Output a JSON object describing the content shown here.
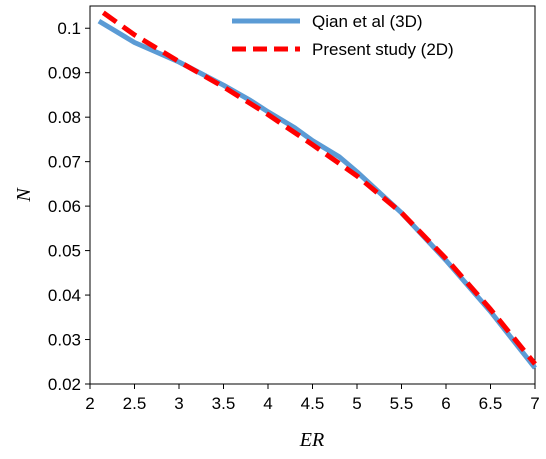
{
  "chart_data": {
    "type": "line",
    "title": "",
    "xlabel": "ER",
    "ylabel": "N",
    "xlim": [
      2,
      7
    ],
    "ylim": [
      0.02,
      0.105
    ],
    "xticks": [
      2,
      2.5,
      3,
      3.5,
      4,
      4.5,
      5,
      5.5,
      6,
      6.5,
      7
    ],
    "xtick_labels": [
      "2",
      "2.5",
      "3",
      "3.5",
      "4",
      "4.5",
      "5",
      "5.5",
      "6",
      "6.5",
      "7"
    ],
    "yticks": [
      0.02,
      0.03,
      0.04,
      0.05,
      0.06,
      0.07,
      0.08,
      0.09,
      0.1
    ],
    "ytick_labels": [
      "0.02",
      "0.03",
      "0.04",
      "0.05",
      "0.06",
      "0.07",
      "0.08",
      "0.09",
      "0.1"
    ],
    "grid": false,
    "legend_position": "top-right",
    "series": [
      {
        "name": "Qian et al (3D)",
        "color": "#5b9bd5",
        "style": "solid",
        "x": [
          2.1,
          2.5,
          3.0,
          3.5,
          3.8,
          4.0,
          4.3,
          4.5,
          4.8,
          5.0,
          5.5,
          6.0,
          6.5,
          7.0
        ],
        "y": [
          0.1016,
          0.0968,
          0.0924,
          0.0872,
          0.0838,
          0.0812,
          0.0776,
          0.0747,
          0.0711,
          0.0677,
          0.0585,
          0.0478,
          0.0363,
          0.0236
        ]
      },
      {
        "name": "Present study (2D)",
        "color": "#ff0000",
        "style": "dashed",
        "x": [
          2.15,
          2.5,
          3.0,
          3.5,
          4.0,
          4.5,
          5.0,
          5.5,
          6.0,
          6.5,
          7.0
        ],
        "y": [
          0.1035,
          0.0985,
          0.0925,
          0.0868,
          0.0806,
          0.0738,
          0.0668,
          0.0585,
          0.0482,
          0.0368,
          0.0245
        ]
      }
    ]
  }
}
